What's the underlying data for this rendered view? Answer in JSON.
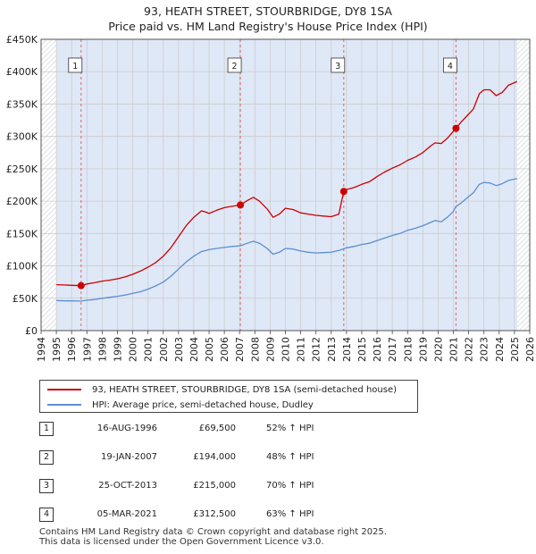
{
  "header": {
    "title": "93, HEATH STREET, STOURBRIDGE, DY8 1SA",
    "subtitle": "Price paid vs. HM Land Registry's House Price Index (HPI)"
  },
  "colors": {
    "property": "#cc0000",
    "hpi": "#5b8fd0",
    "shade": "#dfe8f7",
    "hatch": "#9aa3ad",
    "grid": "#cccccc",
    "vline": "#e06666"
  },
  "chart_data": {
    "type": "line",
    "title": "Price paid vs. HM Land Registry's House Price Index (HPI)",
    "xlim": [
      1994,
      2026
    ],
    "ylim": [
      0,
      450000
    ],
    "xticks": [
      1994,
      1995,
      1996,
      1997,
      1998,
      1999,
      2000,
      2001,
      2002,
      2003,
      2004,
      2005,
      2006,
      2007,
      2008,
      2009,
      2010,
      2011,
      2012,
      2013,
      2014,
      2015,
      2016,
      2017,
      2018,
      2019,
      2020,
      2021,
      2022,
      2023,
      2024,
      2025,
      2026
    ],
    "yticks": [
      {
        "value": 0,
        "label": "£0"
      },
      {
        "value": 50000,
        "label": "£50K"
      },
      {
        "value": 100000,
        "label": "£100K"
      },
      {
        "value": 150000,
        "label": "£150K"
      },
      {
        "value": 200000,
        "label": "£200K"
      },
      {
        "value": 250000,
        "label": "£250K"
      },
      {
        "value": 300000,
        "label": "£300K"
      },
      {
        "value": 350000,
        "label": "£350K"
      },
      {
        "value": 400000,
        "label": "£400K"
      },
      {
        "value": 450000,
        "label": "£450K"
      }
    ],
    "data_start": 1995.0,
    "data_end": 2025.17,
    "series": [
      {
        "name": "93, HEATH STREET, STOURBRIDGE, DY8 1SA (semi-detached house)",
        "color": "#cc0000",
        "points": [
          [
            1995.0,
            71000
          ],
          [
            1995.5,
            70500
          ],
          [
            1996.0,
            70000
          ],
          [
            1996.62,
            69500
          ],
          [
            1997.0,
            72000
          ],
          [
            1997.5,
            74000
          ],
          [
            1998.0,
            76500
          ],
          [
            1998.5,
            78000
          ],
          [
            1999.0,
            80000
          ],
          [
            1999.5,
            83000
          ],
          [
            2000.0,
            87000
          ],
          [
            2000.5,
            92000
          ],
          [
            2001.0,
            98000
          ],
          [
            2001.5,
            105000
          ],
          [
            2002.0,
            115000
          ],
          [
            2002.5,
            128000
          ],
          [
            2003.0,
            145000
          ],
          [
            2003.5,
            162000
          ],
          [
            2004.0,
            175000
          ],
          [
            2004.5,
            185000
          ],
          [
            2004.8,
            183000
          ],
          [
            2005.0,
            181000
          ],
          [
            2005.5,
            186000
          ],
          [
            2006.0,
            190000
          ],
          [
            2006.5,
            192000
          ],
          [
            2007.05,
            194000
          ],
          [
            2007.5,
            201000
          ],
          [
            2007.9,
            206000
          ],
          [
            2008.3,
            200000
          ],
          [
            2008.8,
            188000
          ],
          [
            2009.2,
            175000
          ],
          [
            2009.6,
            180000
          ],
          [
            2010.0,
            189000
          ],
          [
            2010.5,
            187000
          ],
          [
            2011.0,
            182000
          ],
          [
            2011.5,
            180000
          ],
          [
            2012.0,
            178000
          ],
          [
            2012.5,
            177000
          ],
          [
            2013.0,
            176000
          ],
          [
            2013.5,
            180000
          ],
          [
            2013.82,
            215000
          ],
          [
            2014.0,
            218000
          ],
          [
            2014.5,
            221000
          ],
          [
            2015.0,
            226000
          ],
          [
            2015.5,
            230000
          ],
          [
            2016.0,
            238000
          ],
          [
            2016.5,
            245000
          ],
          [
            2017.0,
            251000
          ],
          [
            2017.5,
            256000
          ],
          [
            2018.0,
            263000
          ],
          [
            2018.5,
            268000
          ],
          [
            2019.0,
            275000
          ],
          [
            2019.5,
            285000
          ],
          [
            2019.8,
            290000
          ],
          [
            2020.2,
            289000
          ],
          [
            2020.6,
            297000
          ],
          [
            2021.0,
            308000
          ],
          [
            2021.17,
            312500
          ],
          [
            2021.5,
            322000
          ],
          [
            2021.9,
            332000
          ],
          [
            2022.3,
            342000
          ],
          [
            2022.7,
            366000
          ],
          [
            2023.0,
            372000
          ],
          [
            2023.4,
            372000
          ],
          [
            2023.8,
            363000
          ],
          [
            2024.2,
            368000
          ],
          [
            2024.6,
            379000
          ],
          [
            2025.0,
            383000
          ],
          [
            2025.17,
            385000
          ]
        ]
      },
      {
        "name": "HPI: Average price, semi-detached house, Dudley",
        "color": "#5b8fd0",
        "points": [
          [
            1995.0,
            46500
          ],
          [
            1995.5,
            46000
          ],
          [
            1996.0,
            46000
          ],
          [
            1996.62,
            45700
          ],
          [
            1997.0,
            47000
          ],
          [
            1997.5,
            48000
          ],
          [
            1998.0,
            50000
          ],
          [
            1998.5,
            51500
          ],
          [
            1999.0,
            53000
          ],
          [
            1999.5,
            55000
          ],
          [
            2000.0,
            57500
          ],
          [
            2000.5,
            60000
          ],
          [
            2001.0,
            64000
          ],
          [
            2001.5,
            69000
          ],
          [
            2002.0,
            75000
          ],
          [
            2002.5,
            84000
          ],
          [
            2003.0,
            95000
          ],
          [
            2003.5,
            106000
          ],
          [
            2004.0,
            115000
          ],
          [
            2004.5,
            122000
          ],
          [
            2005.0,
            125000
          ],
          [
            2005.5,
            127000
          ],
          [
            2006.0,
            128500
          ],
          [
            2006.5,
            130000
          ],
          [
            2007.05,
            131000
          ],
          [
            2007.5,
            135000
          ],
          [
            2007.9,
            138000
          ],
          [
            2008.3,
            135000
          ],
          [
            2008.8,
            127000
          ],
          [
            2009.2,
            118000
          ],
          [
            2009.6,
            121000
          ],
          [
            2010.0,
            127000
          ],
          [
            2010.5,
            126000
          ],
          [
            2011.0,
            123000
          ],
          [
            2011.5,
            121000
          ],
          [
            2012.0,
            120000
          ],
          [
            2012.5,
            120500
          ],
          [
            2013.0,
            121000
          ],
          [
            2013.5,
            124000
          ],
          [
            2013.82,
            126500
          ],
          [
            2014.0,
            128000
          ],
          [
            2014.5,
            130000
          ],
          [
            2015.0,
            133000
          ],
          [
            2015.5,
            135000
          ],
          [
            2016.0,
            139000
          ],
          [
            2016.5,
            143000
          ],
          [
            2017.0,
            147000
          ],
          [
            2017.5,
            150000
          ],
          [
            2018.0,
            155000
          ],
          [
            2018.5,
            158000
          ],
          [
            2019.0,
            162000
          ],
          [
            2019.5,
            167000
          ],
          [
            2019.8,
            170000
          ],
          [
            2020.2,
            168000
          ],
          [
            2020.6,
            175000
          ],
          [
            2021.0,
            184000
          ],
          [
            2021.17,
            191700
          ],
          [
            2021.5,
            197000
          ],
          [
            2021.9,
            205000
          ],
          [
            2022.3,
            213000
          ],
          [
            2022.7,
            226000
          ],
          [
            2023.0,
            229000
          ],
          [
            2023.4,
            228000
          ],
          [
            2023.8,
            224000
          ],
          [
            2024.2,
            227000
          ],
          [
            2024.6,
            232000
          ],
          [
            2025.0,
            234000
          ],
          [
            2025.17,
            235000
          ]
        ]
      }
    ],
    "sales": [
      {
        "label": "1",
        "x": 1996.62,
        "price": 69500
      },
      {
        "label": "2",
        "x": 2007.05,
        "price": 194000
      },
      {
        "label": "3",
        "x": 2013.82,
        "price": 215000
      },
      {
        "label": "4",
        "x": 2021.17,
        "price": 312500
      }
    ]
  },
  "legend": {
    "property_label": "93, HEATH STREET, STOURBRIDGE, DY8 1SA (semi-detached house)",
    "hpi_label": "HPI: Average price, semi-detached house, Dudley"
  },
  "sales_table": [
    {
      "num": "1",
      "date": "16-AUG-1996",
      "price": "£69,500",
      "hpi": "52% ↑ HPI"
    },
    {
      "num": "2",
      "date": "19-JAN-2007",
      "price": "£194,000",
      "hpi": "48% ↑ HPI"
    },
    {
      "num": "3",
      "date": "25-OCT-2013",
      "price": "£215,000",
      "hpi": "70% ↑ HPI"
    },
    {
      "num": "4",
      "date": "05-MAR-2021",
      "price": "£312,500",
      "hpi": "63% ↑ HPI"
    }
  ],
  "footer": {
    "line1": "Contains HM Land Registry data © Crown copyright and database right 2025.",
    "line2": "This data is licensed under the Open Government Licence v3.0."
  }
}
